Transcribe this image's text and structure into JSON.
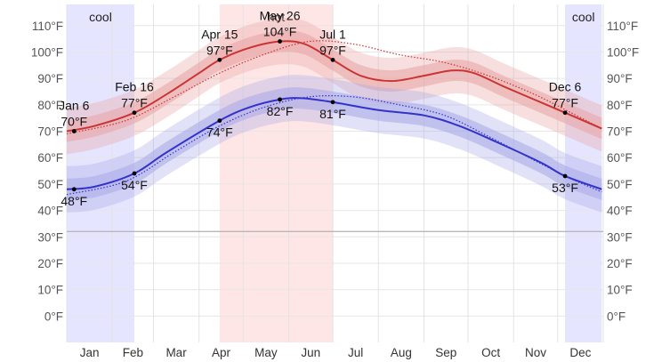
{
  "chart_data": {
    "type": "line",
    "y_unit": "°F",
    "ylim": [
      -10,
      118
    ],
    "yticks": [
      "110°F",
      "100°F",
      "90°F",
      "80°F",
      "70°F",
      "60°F",
      "50°F",
      "40°F",
      "30°F",
      "20°F",
      "10°F",
      "0°F"
    ],
    "ytick_values": [
      110,
      100,
      90,
      80,
      70,
      60,
      50,
      40,
      30,
      20,
      10,
      0
    ],
    "freezing_line": 32,
    "months": [
      "Jan",
      "Feb",
      "Mar",
      "Apr",
      "May",
      "Jun",
      "Jul",
      "Aug",
      "Sep",
      "Oct",
      "Nov",
      "Dec"
    ],
    "seasons": [
      {
        "label": "cool",
        "start": "Jan 1",
        "end": "Feb 16",
        "color": "#e5e5ff"
      },
      {
        "label": "hot",
        "start": "Apr 15",
        "end": "Jul 1",
        "color": "#ffe6e6"
      },
      {
        "label": "cool",
        "start": "Dec 6",
        "end": "Dec 31",
        "color": "#e5e5ff"
      }
    ],
    "colors": {
      "high": "#cc3333",
      "low": "#3333cc",
      "high_band": "#e8a3a3",
      "low_band": "#a8a8e8"
    },
    "series": [
      {
        "key": "high",
        "points": [
          [
            "Jan 1",
            70
          ],
          [
            "Jan 20",
            72
          ],
          [
            "Feb 16",
            77
          ],
          [
            "Mar 10",
            84
          ],
          [
            "Apr 1",
            92
          ],
          [
            "Apr 15",
            97
          ],
          [
            "May 5",
            101.5
          ],
          [
            "May 26",
            104
          ],
          [
            "Jun 12",
            103
          ],
          [
            "Jul 1",
            97
          ],
          [
            "Jul 20",
            91
          ],
          [
            "Aug 10",
            89
          ],
          [
            "Sep 1",
            91
          ],
          [
            "Sep 20",
            93
          ],
          [
            "Oct 5",
            92
          ],
          [
            "Oct 25",
            87
          ],
          [
            "Nov 15",
            82
          ],
          [
            "Dec 6",
            77
          ],
          [
            "Dec 31",
            71
          ]
        ]
      },
      {
        "key": "high_alt",
        "points": [
          [
            "Jan 1",
            69
          ],
          [
            "Feb 10",
            74
          ],
          [
            "Mar 15",
            83
          ],
          [
            "Apr 15",
            92
          ],
          [
            "May 15",
            99
          ],
          [
            "Jun 15",
            104
          ],
          [
            "Jul 15",
            103
          ],
          [
            "Aug 15",
            99
          ],
          [
            "Sep 15",
            96
          ],
          [
            "Oct 15",
            91
          ],
          [
            "Nov 15",
            84
          ],
          [
            "Dec 10",
            77
          ],
          [
            "Dec 31",
            71
          ]
        ]
      },
      {
        "key": "low",
        "points": [
          [
            "Jan 1",
            48
          ],
          [
            "Jan 20",
            49
          ],
          [
            "Feb 16",
            54
          ],
          [
            "Mar 10",
            62
          ],
          [
            "Apr 15",
            74
          ],
          [
            "May 5",
            79
          ],
          [
            "May 26",
            82
          ],
          [
            "Jun 10",
            82.5
          ],
          [
            "Jul 1",
            81
          ],
          [
            "Aug 1",
            78
          ],
          [
            "Sep 1",
            76
          ],
          [
            "Sep 25",
            72
          ],
          [
            "Oct 20",
            66
          ],
          [
            "Nov 20",
            58
          ],
          [
            "Dec 6",
            53
          ],
          [
            "Dec 31",
            48
          ]
        ]
      },
      {
        "key": "low_alt",
        "points": [
          [
            "Jan 1",
            46
          ],
          [
            "Feb 10",
            51
          ],
          [
            "Mar 15",
            62
          ],
          [
            "Apr 15",
            72
          ],
          [
            "May 15",
            79
          ],
          [
            "Jun 15",
            83
          ],
          [
            "Jul 15",
            83
          ],
          [
            "Aug 15",
            80
          ],
          [
            "Sep 15",
            76
          ],
          [
            "Oct 15",
            68
          ],
          [
            "Nov 15",
            59
          ],
          [
            "Dec 10",
            52
          ],
          [
            "Dec 31",
            47
          ]
        ]
      }
    ],
    "annotations": [
      {
        "date": "Jan 6",
        "temp": "70°F",
        "value": 70,
        "side": "above"
      },
      {
        "date": "Jan 6",
        "temp": "48°F",
        "value": 48,
        "side": "below"
      },
      {
        "date": "Feb 16",
        "temp": "77°F",
        "value": 77,
        "side": "above"
      },
      {
        "date": "Feb 16",
        "temp": "54°F",
        "value": 54,
        "side": "below"
      },
      {
        "date": "Apr 15",
        "temp": "97°F",
        "value": 97,
        "side": "above"
      },
      {
        "date": "Apr 15",
        "temp": "74°F",
        "value": 74,
        "side": "below"
      },
      {
        "date": "May 26",
        "temp": "104°F",
        "value": 104,
        "side": "above"
      },
      {
        "date": "May 26",
        "temp": "82°F",
        "value": 82,
        "side": "below"
      },
      {
        "date": "Jul 1",
        "temp": "97°F",
        "value": 97,
        "side": "above"
      },
      {
        "date": "Jul 1",
        "temp": "81°F",
        "value": 81,
        "side": "below"
      },
      {
        "date": "Dec 6",
        "temp": "77°F",
        "value": 77,
        "side": "above"
      },
      {
        "date": "Dec 6",
        "temp": "53°F",
        "value": 53,
        "side": "below"
      }
    ]
  }
}
